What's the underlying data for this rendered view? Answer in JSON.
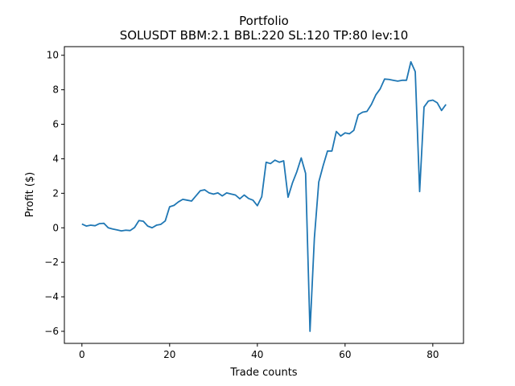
{
  "chart_data": {
    "type": "line",
    "title": "Portfolio",
    "subtitle": "SOLUSDT BBM:2.1 BBL:220 SL:120 TP:80 lev:10",
    "xlabel": "Trade counts",
    "ylabel": "Profit ($)",
    "xlim": [
      -4,
      87
    ],
    "ylim": [
      -6.7,
      10.5
    ],
    "xticks": [
      0,
      20,
      40,
      60,
      80
    ],
    "yticks": [
      -6,
      -4,
      -2,
      0,
      2,
      4,
      6,
      8,
      10
    ],
    "grid": false,
    "line_color": "#1f77b4",
    "series": [
      {
        "x": [
          0,
          1,
          2,
          3,
          4,
          5,
          6,
          7,
          8,
          9,
          10,
          11,
          12,
          13,
          14,
          15,
          16,
          17,
          18,
          19,
          20,
          21,
          22,
          23,
          24,
          25,
          26,
          27,
          28,
          29,
          30,
          31,
          32,
          33,
          34,
          35,
          36,
          37,
          38,
          39,
          40,
          41,
          42,
          43,
          44,
          45,
          46,
          47,
          48,
          49,
          50,
          51,
          52,
          53,
          54,
          55,
          56,
          57,
          58,
          59,
          60,
          61,
          62,
          63,
          64,
          65,
          66,
          67,
          68,
          69,
          70,
          71,
          72,
          73,
          74,
          75,
          76,
          77,
          78,
          79,
          80,
          81,
          82,
          83
        ],
        "y": [
          0.22,
          0.1,
          0.15,
          0.12,
          0.24,
          0.26,
          0.0,
          -0.07,
          -0.12,
          -0.18,
          -0.14,
          -0.16,
          0.02,
          0.42,
          0.38,
          0.1,
          0.0,
          0.15,
          0.2,
          0.4,
          1.22,
          1.3,
          1.5,
          1.65,
          1.6,
          1.55,
          1.85,
          2.15,
          2.2,
          2.02,
          1.95,
          2.02,
          1.85,
          2.02,
          1.96,
          1.9,
          1.68,
          1.9,
          1.7,
          1.6,
          1.28,
          1.8,
          3.8,
          3.72,
          3.92,
          3.8,
          3.88,
          1.77,
          2.6,
          3.25,
          4.05,
          3.15,
          -6.0,
          -0.6,
          2.65,
          3.6,
          4.45,
          4.45,
          5.58,
          5.32,
          5.5,
          5.45,
          5.65,
          6.55,
          6.7,
          6.75,
          7.15,
          7.7,
          8.05,
          8.62,
          8.6,
          8.55,
          8.5,
          8.55,
          8.55,
          9.62,
          9.05,
          2.1,
          7.0,
          7.35,
          7.4,
          7.25,
          6.8,
          7.15
        ]
      }
    ]
  }
}
